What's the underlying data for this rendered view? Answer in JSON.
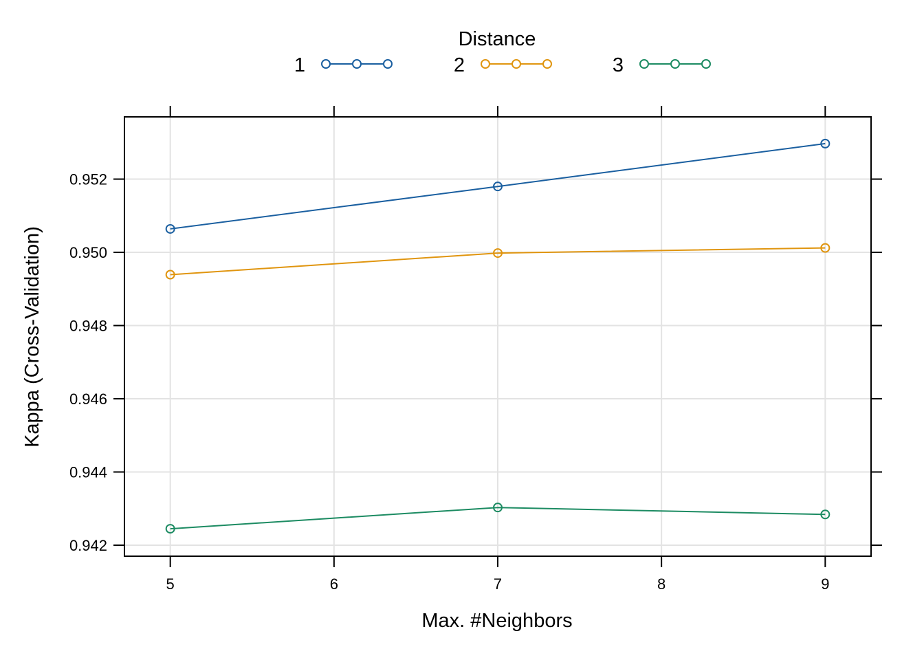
{
  "chart_data": {
    "type": "line",
    "xlabel": "Max. #Neighbors",
    "ylabel": "Kappa (Cross-Validation)",
    "x": [
      5,
      7,
      9
    ],
    "xlim": [
      4.72,
      9.28
    ],
    "ylim": [
      0.9417,
      0.9537
    ],
    "xticks": [
      5,
      6,
      7,
      8,
      9
    ],
    "yticks": [
      0.942,
      0.944,
      0.946,
      0.948,
      0.95,
      0.952
    ],
    "xtick_labels": [
      "5",
      "6",
      "7",
      "8",
      "9"
    ],
    "ytick_labels": [
      "0.942",
      "0.944",
      "0.946",
      "0.948",
      "0.950",
      "0.952"
    ],
    "grid": true,
    "legend": {
      "title": "Distance",
      "placement": "top-center"
    },
    "series": [
      {
        "name": "1",
        "color": "#1a5fa0",
        "values": [
          0.95064,
          0.9518,
          0.95297
        ]
      },
      {
        "name": "2",
        "color": "#e0950f",
        "values": [
          0.94939,
          0.94998,
          0.95012
        ]
      },
      {
        "name": "3",
        "color": "#1c8b62",
        "values": [
          0.94245,
          0.94303,
          0.94284
        ]
      }
    ]
  }
}
